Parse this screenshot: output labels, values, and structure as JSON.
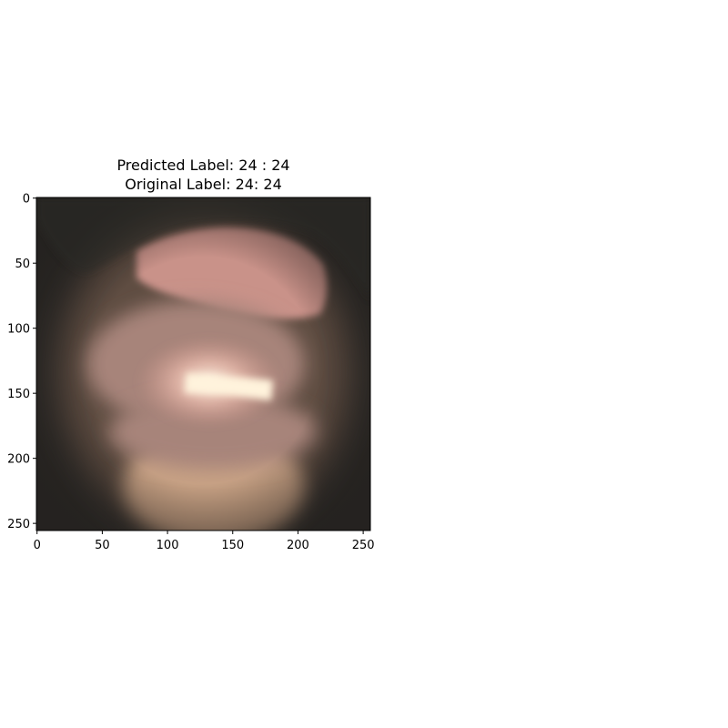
{
  "chart_data": {
    "type": "image",
    "title": [
      "Predicted Label: 24 : 24",
      "Original Label: 24: 24"
    ],
    "xlabel": "",
    "ylabel": "",
    "xlim": [
      -0.5,
      255.5
    ],
    "ylim": [
      255.5,
      -0.5
    ],
    "x_ticks": [
      0,
      50,
      100,
      150,
      200,
      250
    ],
    "y_ticks": [
      0,
      50,
      100,
      150,
      200,
      250
    ],
    "grid": false,
    "image_subject": "endoscopic-lumen",
    "colors": {
      "image_background": "#3a3632",
      "tissue_dark": "#5e4d43",
      "tissue_mid": "#a7847a",
      "tissue_pink": "#c99289",
      "tissue_tan": "#c7a184",
      "highlight": "#fff3dc",
      "rim_shadow": "#2c2a27"
    }
  }
}
